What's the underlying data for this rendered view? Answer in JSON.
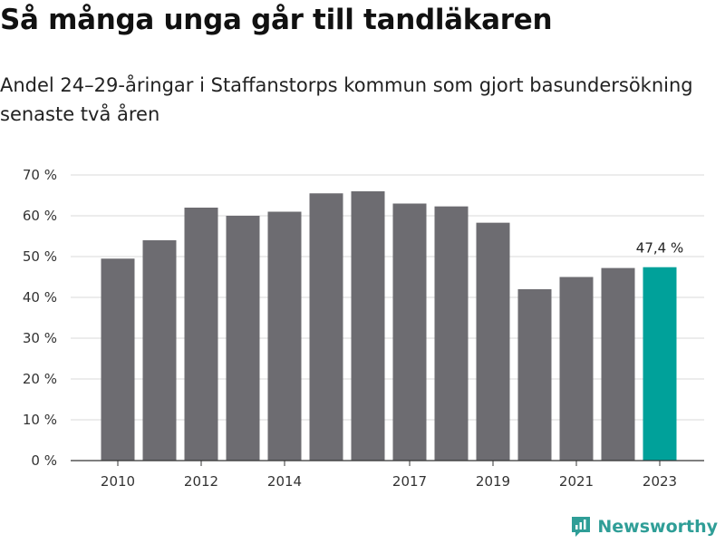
{
  "title": "Så många unga går till tandläkaren",
  "subtitle": "Andel 24–29-åringar i Staffanstorps kommun som gjort basundersökning senaste två åren",
  "brand": "Newsworthy",
  "colors": {
    "bar": "#6d6c71",
    "highlight": "#00a19a",
    "grid": "#d9d9d9",
    "axis": "#333333"
  },
  "chart_data": {
    "type": "bar",
    "x": [
      2010,
      2011,
      2012,
      2013,
      2014,
      2015,
      2016,
      2017,
      2018,
      2019,
      2020,
      2021,
      2022,
      2023
    ],
    "values": [
      49.5,
      54.0,
      62.0,
      60.0,
      61.0,
      65.5,
      66.0,
      63.0,
      62.3,
      58.3,
      42.0,
      45.0,
      47.2,
      47.4
    ],
    "xtick_labels": [
      "2010",
      "2012",
      "2014",
      "2017",
      "2019",
      "2021",
      "2023"
    ],
    "ytick_labels": [
      "0 %",
      "10 %",
      "20 %",
      "30 %",
      "40 %",
      "50 %",
      "60 %",
      "70 %"
    ],
    "ylim": [
      0,
      70
    ],
    "highlight": 2023,
    "data_labels": [
      {
        "x": 2023,
        "text": "47,4 %"
      }
    ],
    "grid": true,
    "xlabel": "",
    "ylabel": ""
  }
}
